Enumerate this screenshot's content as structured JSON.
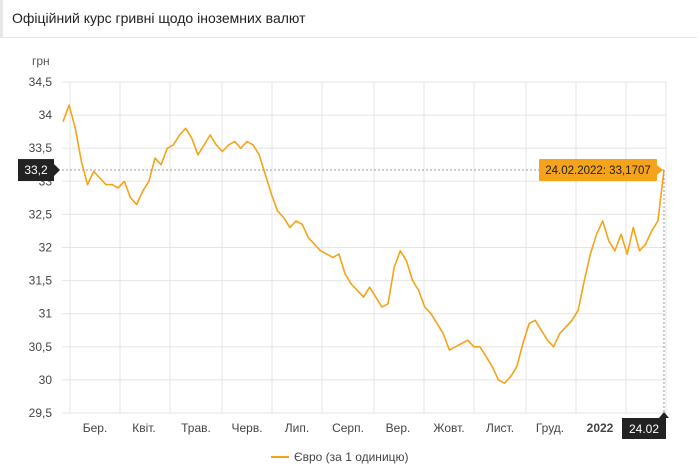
{
  "header": {
    "title": "Офіційний курс гривні щодо іноземних валют"
  },
  "chart_data": {
    "type": "line",
    "ylabel": "грн",
    "ylim": [
      29.5,
      34.5
    ],
    "yticks": [
      "34,5",
      "34",
      "33,5",
      "33",
      "32,5",
      "32",
      "31,5",
      "31",
      "30,5",
      "30",
      "29,5"
    ],
    "ytick_values": [
      34.5,
      34,
      33.5,
      33,
      32.5,
      32,
      31.5,
      31,
      30.5,
      30,
      29.5
    ],
    "xticks": [
      "Бер.",
      "Квіт.",
      "Трав.",
      "Черв.",
      "Лип.",
      "Серп.",
      "Вер.",
      "Жовт.",
      "Лист.",
      "Груд.",
      "2022"
    ],
    "grid": true,
    "series": [
      {
        "name": "Євро (за 1 одиницю)",
        "color": "#f5a31a",
        "values": [
          33.9,
          34.15,
          33.8,
          33.3,
          32.95,
          33.15,
          33.05,
          32.95,
          32.95,
          32.9,
          33.0,
          32.75,
          32.65,
          32.85,
          33.0,
          33.35,
          33.25,
          33.5,
          33.55,
          33.7,
          33.8,
          33.65,
          33.4,
          33.55,
          33.7,
          33.55,
          33.45,
          33.55,
          33.6,
          33.5,
          33.6,
          33.55,
          33.4,
          33.1,
          32.8,
          32.55,
          32.45,
          32.3,
          32.4,
          32.35,
          32.15,
          32.05,
          31.95,
          31.9,
          31.85,
          31.9,
          31.6,
          31.45,
          31.35,
          31.25,
          31.4,
          31.25,
          31.1,
          31.15,
          31.7,
          31.95,
          31.8,
          31.5,
          31.35,
          31.1,
          31.0,
          30.85,
          30.7,
          30.45,
          30.5,
          30.55,
          30.6,
          30.5,
          30.5,
          30.35,
          30.2,
          30.0,
          29.95,
          30.05,
          30.2,
          30.55,
          30.85,
          30.9,
          30.75,
          30.6,
          30.5,
          30.7,
          30.8,
          30.9,
          31.05,
          31.5,
          31.9,
          32.2,
          32.4,
          32.1,
          31.95,
          32.2,
          31.9,
          32.3,
          31.95,
          32.05,
          32.25,
          32.4,
          33.17
        ]
      }
    ],
    "highlight": {
      "x_label": "24.02",
      "y_label": "33,2",
      "value": 33.17,
      "tooltip": "24.02.2022: 33,1707"
    },
    "legend": {
      "placement": "bottom-center",
      "label": "Євро (за 1 одиницю)"
    }
  },
  "colors": {
    "line": "#f5a31a",
    "tooltip_bg": "#f5a31a",
    "marker_bg": "#222222",
    "grid": "#e5e5e5"
  }
}
